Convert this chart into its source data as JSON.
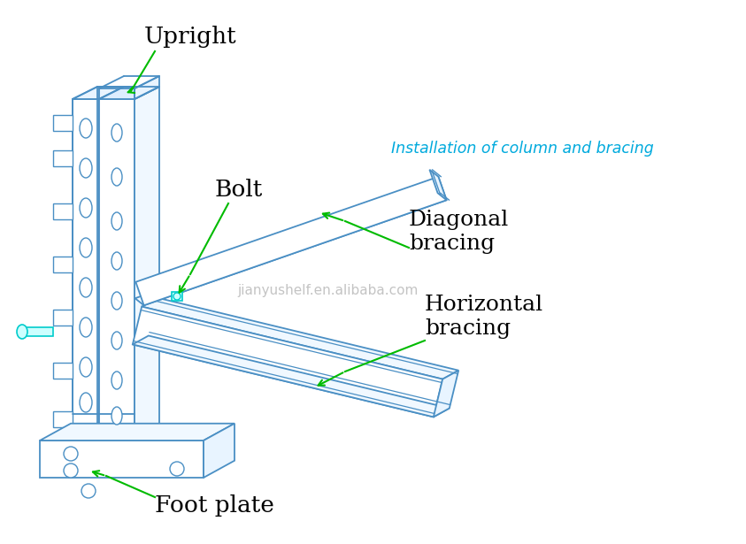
{
  "background_color": "#ffffff",
  "lc": "#4a8fc4",
  "lc2": "#5ba0d0",
  "gc": "#00bb00",
  "cyan": "#00aadd",
  "gray": "#b0b0b0",
  "black": "#111111",
  "figsize": [
    8.43,
    6.15
  ],
  "dpi": 100,
  "title": "Installation of column and bracing",
  "watermark": "jianyushelf.en.alibaba.com",
  "lbl_upright": "Upright",
  "lbl_bolt": "Bolt",
  "lbl_diagonal": "Diagonal\nbracing",
  "lbl_horizontal": "Horizontal\nbracing",
  "lbl_foot": "Foot plate"
}
